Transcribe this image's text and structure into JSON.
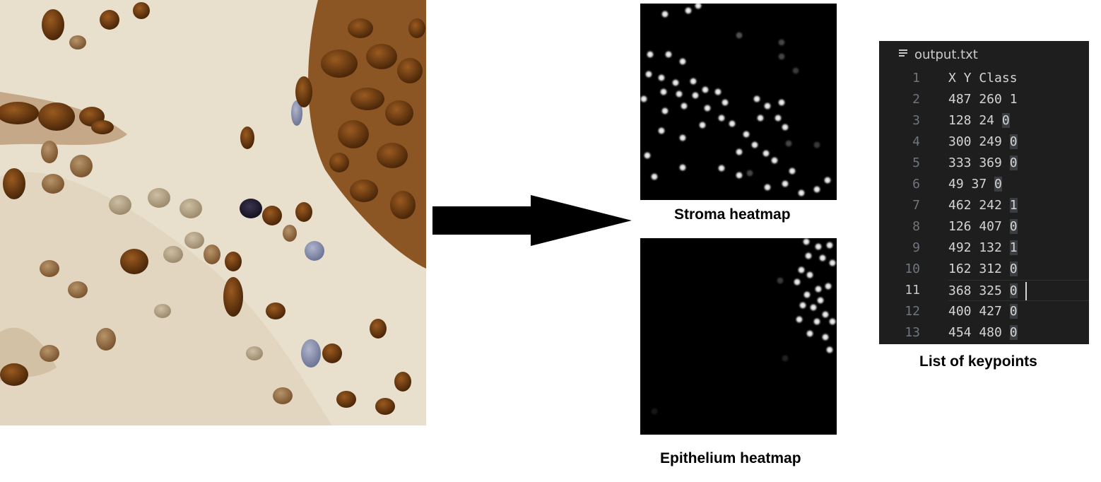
{
  "stroma_caption": "Stroma heatmap",
  "epithelium_caption": "Epithelium heatmap",
  "keypoints_caption": "List of keypoints",
  "editor": {
    "file_name": "output.txt",
    "file_icon": "text-file-icon",
    "lines": [
      {
        "num": "1",
        "text": "X Y Class"
      },
      {
        "num": "2",
        "text": "487 260 1"
      },
      {
        "num": "3",
        "text": "128 24 0"
      },
      {
        "num": "4",
        "text": "300 249 0"
      },
      {
        "num": "5",
        "text": "333 369 0"
      },
      {
        "num": "6",
        "text": "49 37 0"
      },
      {
        "num": "7",
        "text": "462 242 1"
      },
      {
        "num": "8",
        "text": "126 407 0"
      },
      {
        "num": "9",
        "text": "492 132 1"
      },
      {
        "num": "10",
        "text": "162 312 0"
      },
      {
        "num": "11",
        "text": "368 325 0"
      },
      {
        "num": "12",
        "text": "400 427 0"
      },
      {
        "num": "13",
        "text": "454 480 0"
      }
    ]
  },
  "colors": {
    "editor_bg": "#1e1e1e",
    "heatmap_bg": "#000000",
    "stain_brown": "#6b3a12",
    "stain_blue": "#7d86a8",
    "tissue_bg": "#e9e0cf"
  }
}
